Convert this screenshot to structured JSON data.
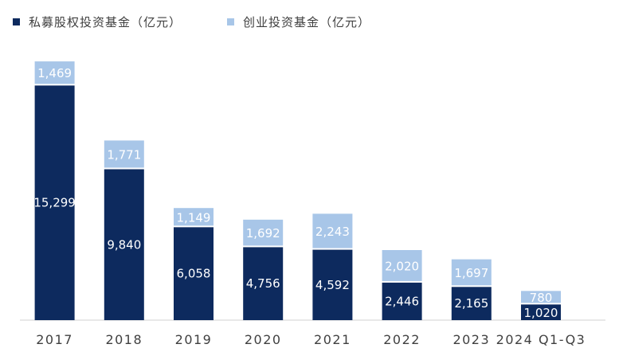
{
  "chart_data": {
    "type": "bar",
    "stacked": true,
    "categories": [
      "2017",
      "2018",
      "2019",
      "2020",
      "2021",
      "2022",
      "2023",
      "2024 Q1-Q3"
    ],
    "series": [
      {
        "name": "私募股权投资基金（亿元）",
        "color": "#0d2a5e",
        "values": [
          15299,
          9840,
          6058,
          4756,
          4592,
          2446,
          2165,
          1020
        ],
        "labels": [
          "15,299",
          "9,840",
          "6,058",
          "4,756",
          "4,592",
          "2,446",
          "2,165",
          "1,020"
        ]
      },
      {
        "name": "创业投资基金（亿元）",
        "color": "#a8c6e8",
        "values": [
          1469,
          1771,
          1149,
          1692,
          2243,
          2020,
          1697,
          780
        ],
        "labels": [
          "1,469",
          "1,771",
          "1,149",
          "1,692",
          "2,243",
          "2,020",
          "1,697",
          "780"
        ]
      }
    ],
    "title": "",
    "xlabel": "",
    "ylabel": "",
    "ylim": [
      0,
      17500
    ],
    "legend_position": "top-left",
    "grid": false
  }
}
